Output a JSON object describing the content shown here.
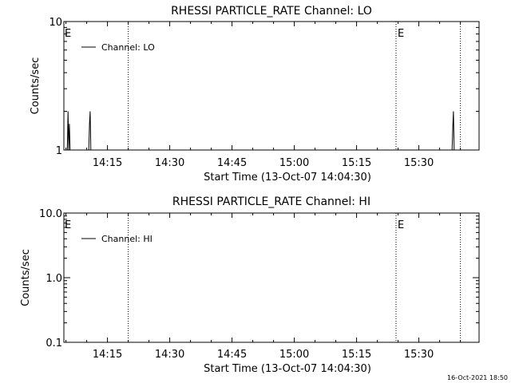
{
  "chart_data": [
    {
      "type": "line",
      "title": "RHESSI PARTICLE_RATE Channel: LO",
      "xlabel": "Start Time (13-Oct-07 14:04:30)",
      "ylabel": "Counts/sec",
      "yscale": "log",
      "ylim": [
        1,
        10
      ],
      "y_tick_labels": [
        "1",
        "10"
      ],
      "xlim": [
        "14:04:30",
        "15:44:30"
      ],
      "x_tick_labels": [
        "14:15",
        "14:30",
        "14:45",
        "15:00",
        "15:15",
        "15:30"
      ],
      "grid": false,
      "legend": "top-left",
      "vlines": [
        {
          "time": "14:20:00",
          "label": ""
        },
        {
          "time": "15:24:30",
          "label": "E"
        },
        {
          "time": "15:40:00",
          "label": ""
        }
      ],
      "start_marker": "E",
      "series": [
        {
          "name": "Channel: LO",
          "x": [
            "14:05:20",
            "14:05:30",
            "14:05:40",
            "14:05:50",
            "14:06:00",
            "14:10:30",
            "14:10:40",
            "14:10:50",
            "14:11:00",
            "14:38:00",
            "15:38:00",
            "15:38:10",
            "15:38:20",
            "15:38:30",
            "15:38:40"
          ],
          "y": [
            1,
            2,
            1,
            1.6,
            1,
            1,
            1.6,
            2,
            1,
            1,
            1,
            1.5,
            2,
            1,
            1
          ]
        }
      ]
    },
    {
      "type": "line",
      "title": "RHESSI PARTICLE_RATE Channel: HI",
      "xlabel": "Start Time (13-Oct-07 14:04:30)",
      "ylabel": "Counts/sec",
      "yscale": "log",
      "ylim": [
        0.1,
        10
      ],
      "y_tick_labels": [
        "0.1",
        "1.0",
        "10.0"
      ],
      "xlim": [
        "14:04:30",
        "15:44:30"
      ],
      "x_tick_labels": [
        "14:15",
        "14:30",
        "14:45",
        "15:00",
        "15:15",
        "15:30"
      ],
      "grid": false,
      "legend": "top-left",
      "vlines": [
        {
          "time": "14:20:00",
          "label": ""
        },
        {
          "time": "15:24:30",
          "label": "E"
        },
        {
          "time": "15:40:00",
          "label": ""
        }
      ],
      "start_marker": "E",
      "series": [
        {
          "name": "Channel: HI",
          "x": [],
          "y": []
        }
      ]
    }
  ],
  "footer": {
    "timestamp": "16-Oct-2021 18:50"
  }
}
